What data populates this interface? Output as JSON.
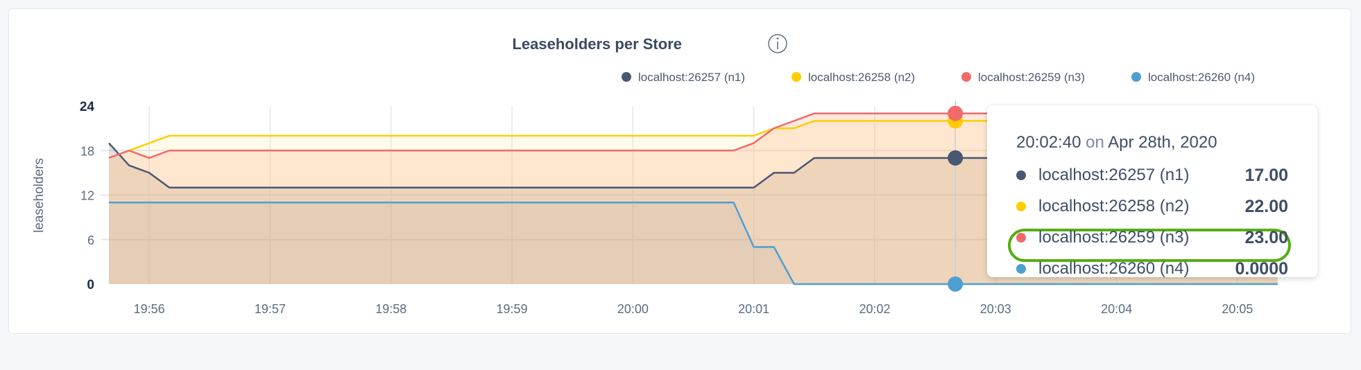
{
  "chart_data": {
    "type": "area",
    "title": "Leaseholders per Store",
    "ylabel": "leaseholders",
    "xlabel": "",
    "ylim": [
      0,
      24
    ],
    "yticks": [
      "0",
      "6",
      "12",
      "18",
      "24"
    ],
    "xlim": [
      "19:55:40",
      "20:05:20"
    ],
    "xticks": [
      "19:56",
      "19:57",
      "19:58",
      "19:59",
      "20:00",
      "20:01",
      "20:02",
      "20:03",
      "20:04",
      "20:05"
    ],
    "grid": true,
    "legend_position": "top-right",
    "x": [
      "19:55:40",
      "19:55:50",
      "19:56:00",
      "19:56:10",
      "19:56:20",
      "19:56:30",
      "19:56:40",
      "19:56:50",
      "19:57:00",
      "19:57:10",
      "19:57:20",
      "19:57:30",
      "19:57:40",
      "19:57:50",
      "19:58:00",
      "19:58:10",
      "19:58:20",
      "19:58:30",
      "19:58:40",
      "19:58:50",
      "19:59:00",
      "19:59:10",
      "19:59:20",
      "19:59:30",
      "19:59:40",
      "19:59:50",
      "20:00:00",
      "20:00:10",
      "20:00:20",
      "20:00:30",
      "20:00:40",
      "20:00:50",
      "20:01:00",
      "20:01:10",
      "20:01:20",
      "20:01:30",
      "20:01:40",
      "20:01:50",
      "20:02:00",
      "20:02:10",
      "20:02:20",
      "20:02:30",
      "20:02:40",
      "20:02:50",
      "20:03:00",
      "20:03:10",
      "20:03:20",
      "20:03:30",
      "20:03:40",
      "20:03:50",
      "20:04:00",
      "20:04:10",
      "20:04:20",
      "20:04:30",
      "20:04:40",
      "20:04:50",
      "20:05:00",
      "20:05:10",
      "20:05:20"
    ],
    "series": [
      {
        "name": "localhost:26257 (n1)",
        "color": "#475872",
        "values": [
          19,
          16,
          15,
          13,
          13,
          13,
          13,
          13,
          13,
          13,
          13,
          13,
          13,
          13,
          13,
          13,
          13,
          13,
          13,
          13,
          13,
          13,
          13,
          13,
          13,
          13,
          13,
          13,
          13,
          13,
          13,
          13,
          13,
          15,
          15,
          17,
          17,
          17,
          17,
          17,
          17,
          17,
          17,
          17,
          17,
          17,
          17,
          17,
          17,
          17,
          17,
          17,
          17,
          17,
          17,
          17,
          17,
          17,
          17
        ]
      },
      {
        "name": "localhost:26258 (n2)",
        "color": "#ffcd02",
        "values": [
          17,
          18,
          19,
          20,
          20,
          20,
          20,
          20,
          20,
          20,
          20,
          20,
          20,
          20,
          20,
          20,
          20,
          20,
          20,
          20,
          20,
          20,
          20,
          20,
          20,
          20,
          20,
          20,
          20,
          20,
          20,
          20,
          20,
          21,
          21,
          22,
          22,
          22,
          22,
          22,
          22,
          22,
          22,
          22,
          22,
          22,
          22,
          22,
          22,
          22,
          22,
          22,
          22,
          22,
          22,
          22,
          22,
          22,
          22
        ]
      },
      {
        "name": "localhost:26259 (n3)",
        "color": "#f16969",
        "values": [
          17,
          18,
          17,
          18,
          18,
          18,
          18,
          18,
          18,
          18,
          18,
          18,
          18,
          18,
          18,
          18,
          18,
          18,
          18,
          18,
          18,
          18,
          18,
          18,
          18,
          18,
          18,
          18,
          18,
          18,
          18,
          18,
          19,
          21,
          22,
          23,
          23,
          23,
          23,
          23,
          23,
          23,
          23,
          23,
          23,
          23,
          23,
          23,
          23,
          23,
          23,
          23,
          23,
          23,
          23,
          23,
          23,
          23,
          23
        ]
      },
      {
        "name": "localhost:26260 (n4)",
        "color": "#4e9fd1",
        "values": [
          11,
          11,
          11,
          11,
          11,
          11,
          11,
          11,
          11,
          11,
          11,
          11,
          11,
          11,
          11,
          11,
          11,
          11,
          11,
          11,
          11,
          11,
          11,
          11,
          11,
          11,
          11,
          11,
          11,
          11,
          11,
          11,
          5,
          5,
          0,
          0,
          0,
          0,
          0,
          0,
          0,
          0,
          0,
          0,
          0,
          0,
          0,
          0,
          0,
          0,
          0,
          0,
          0,
          0,
          0,
          0,
          0,
          0,
          0
        ]
      }
    ],
    "hover": {
      "x": "20:02:40",
      "time_label": "20:02:40",
      "on_label": "on",
      "date_label": "Apr 28th, 2020",
      "rows": [
        {
          "name": "localhost:26257 (n1)",
          "value": "17.00",
          "color": "#475872"
        },
        {
          "name": "localhost:26258 (n2)",
          "value": "22.00",
          "color": "#ffcd02"
        },
        {
          "name": "localhost:26259 (n3)",
          "value": "23.00",
          "color": "#f16969"
        },
        {
          "name": "localhost:26260 (n4)",
          "value": "0.0000",
          "color": "#4e9fd1",
          "highlighted": true
        }
      ]
    },
    "highlight_color": "#55ae14"
  },
  "icons": {
    "title_info": "info-icon"
  }
}
